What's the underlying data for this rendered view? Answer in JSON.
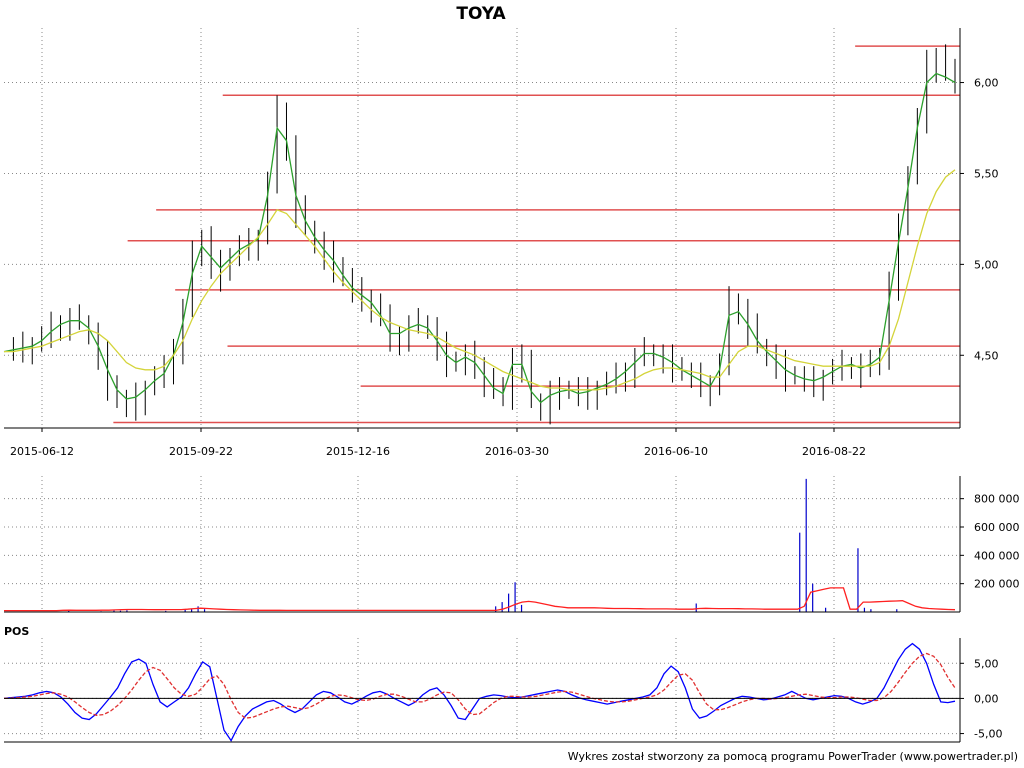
{
  "chart_data": [
    {
      "type": "candlestick",
      "title": "TOYA",
      "x_ticks": [
        "2015-06-12",
        "2015-09-22",
        "2015-12-16",
        "2016-03-30",
        "2016-06-10",
        "2016-08-22"
      ],
      "y_ticks": [
        "4,50",
        "5,00",
        "5,50",
        "6,00"
      ],
      "ylim": [
        4.1,
        6.3
      ],
      "grid": true,
      "series": [
        {
          "name": "",
          "kind": "close-line",
          "color": "#000000",
          "values": [
            4.53,
            4.54,
            4.55,
            4.56,
            4.6,
            4.66,
            4.68,
            4.7,
            4.68,
            4.62,
            4.5,
            4.35,
            4.25,
            4.22,
            4.27,
            4.32,
            4.38,
            4.42,
            4.55,
            4.75,
            5.05,
            5.15,
            5.0,
            4.95,
            5.05,
            5.1,
            5.12,
            5.15,
            5.45,
            5.85,
            5.65,
            5.3,
            5.2,
            5.12,
            5.05,
            5.0,
            4.92,
            4.85,
            4.82,
            4.78,
            4.7,
            4.58,
            4.62,
            4.66,
            4.68,
            4.65,
            4.55,
            4.48,
            4.45,
            4.5,
            4.45,
            4.37,
            4.3,
            4.28,
            4.5,
            4.45,
            4.25,
            4.2,
            4.3,
            4.3,
            4.32,
            4.28,
            4.3,
            4.32,
            4.35,
            4.38,
            4.42,
            4.48,
            4.52,
            4.5,
            4.48,
            4.45,
            4.4,
            4.38,
            4.35,
            4.32,
            4.45,
            4.8,
            4.75,
            4.65,
            4.55,
            4.5,
            4.45,
            4.4,
            4.38,
            4.36,
            4.35,
            4.38,
            4.42,
            4.45,
            4.45,
            4.42,
            4.45,
            4.5,
            4.9,
            5.2,
            5.5,
            5.8,
            6.1,
            6.15,
            6.05,
            6.0
          ]
        },
        {
          "name": "",
          "kind": "moving-average",
          "color": "#2ca02c",
          "values": [
            4.52,
            4.53,
            4.54,
            4.55,
            4.58,
            4.63,
            4.67,
            4.69,
            4.69,
            4.65,
            4.55,
            4.42,
            4.31,
            4.26,
            4.27,
            4.31,
            4.36,
            4.4,
            4.5,
            4.68,
            4.95,
            5.1,
            5.04,
            4.98,
            5.03,
            5.08,
            5.11,
            5.14,
            5.38,
            5.75,
            5.68,
            5.38,
            5.24,
            5.15,
            5.08,
            5.02,
            4.94,
            4.87,
            4.83,
            4.79,
            4.72,
            4.62,
            4.62,
            4.65,
            4.67,
            4.65,
            4.58,
            4.5,
            4.46,
            4.49,
            4.46,
            4.39,
            4.32,
            4.29,
            4.45,
            4.45,
            4.3,
            4.24,
            4.28,
            4.3,
            4.31,
            4.29,
            4.3,
            4.32,
            4.34,
            4.37,
            4.41,
            4.46,
            4.51,
            4.51,
            4.49,
            4.46,
            4.42,
            4.39,
            4.36,
            4.33,
            4.42,
            4.72,
            4.74,
            4.67,
            4.58,
            4.52,
            4.47,
            4.42,
            4.39,
            4.37,
            4.36,
            4.38,
            4.41,
            4.44,
            4.45,
            4.43,
            4.45,
            4.49,
            4.8,
            5.12,
            5.42,
            5.75,
            6.0,
            6.05,
            6.03,
            6.0
          ]
        },
        {
          "name": "",
          "kind": "moving-average",
          "color": "#d4d43a",
          "values": [
            4.52,
            4.52,
            4.53,
            4.54,
            4.55,
            4.57,
            4.59,
            4.61,
            4.63,
            4.64,
            4.62,
            4.58,
            4.52,
            4.46,
            4.43,
            4.42,
            4.42,
            4.44,
            4.5,
            4.58,
            4.7,
            4.8,
            4.88,
            4.95,
            5.0,
            5.05,
            5.1,
            5.15,
            5.22,
            5.3,
            5.28,
            5.22,
            5.16,
            5.1,
            5.03,
            4.96,
            4.9,
            4.85,
            4.8,
            4.75,
            4.71,
            4.68,
            4.66,
            4.64,
            4.63,
            4.62,
            4.6,
            4.57,
            4.54,
            4.52,
            4.5,
            4.47,
            4.44,
            4.41,
            4.39,
            4.37,
            4.35,
            4.33,
            4.32,
            4.32,
            4.31,
            4.31,
            4.31,
            4.31,
            4.32,
            4.33,
            4.35,
            4.37,
            4.4,
            4.42,
            4.43,
            4.43,
            4.42,
            4.41,
            4.4,
            4.38,
            4.38,
            4.45,
            4.52,
            4.55,
            4.55,
            4.53,
            4.51,
            4.49,
            4.47,
            4.46,
            4.45,
            4.44,
            4.44,
            4.44,
            4.44,
            4.44,
            4.44,
            4.46,
            4.55,
            4.7,
            4.9,
            5.1,
            5.28,
            5.4,
            5.48,
            5.52
          ]
        }
      ],
      "horizontal_lines": [
        {
          "value": 6.2,
          "from": 0.895,
          "color": "#e05050"
        },
        {
          "value": 5.93,
          "from": 0.23,
          "color": "#e05050"
        },
        {
          "value": 5.3,
          "from": 0.16,
          "color": "#e05050"
        },
        {
          "value": 5.13,
          "from": 0.13,
          "color": "#e05050"
        },
        {
          "value": 4.86,
          "from": 0.18,
          "color": "#e05050"
        },
        {
          "value": 4.55,
          "from": 0.235,
          "color": "#e05050"
        },
        {
          "value": 4.33,
          "from": 0.375,
          "color": "#e05050"
        },
        {
          "value": 4.13,
          "from": 0.115,
          "color": "#e05050"
        }
      ]
    },
    {
      "type": "bar",
      "y_ticks": [
        "200 000",
        "400 000",
        "600 000",
        "800 000"
      ],
      "ylim": [
        0,
        960000
      ],
      "grid": true,
      "series": [
        {
          "name": "",
          "kind": "volume-bars",
          "color": "#0000cc",
          "values": [
            0,
            0,
            0,
            0,
            0,
            0,
            0,
            0,
            0,
            0,
            8000,
            0,
            0,
            0,
            0,
            5000,
            0,
            10000,
            9000,
            12000,
            0,
            0,
            0,
            0,
            0,
            8000,
            0,
            0,
            15000,
            25000,
            40000,
            20000,
            0,
            0,
            0,
            0,
            0,
            0,
            0,
            0,
            0,
            0,
            0,
            0,
            0,
            0,
            0,
            0,
            0,
            0,
            0,
            0,
            0,
            0,
            0,
            0,
            0,
            0,
            0,
            0,
            0,
            0,
            0,
            0,
            0,
            0,
            0,
            0,
            0,
            0,
            0,
            0,
            0,
            0,
            0,
            0,
            40000,
            70000,
            130000,
            210000,
            50000,
            0,
            0,
            0,
            0,
            0,
            0,
            0,
            0,
            0,
            0,
            0,
            0,
            0,
            0,
            0,
            0,
            0,
            0,
            0,
            0,
            0,
            0,
            0,
            0,
            0,
            0,
            60000,
            0,
            0,
            0,
            0,
            0,
            0,
            0,
            0,
            0,
            0,
            0,
            0,
            0,
            0,
            0,
            560000,
            940000,
            200000,
            0,
            30000,
            0,
            0,
            0,
            0,
            450000,
            30000,
            20000,
            0,
            0,
            0,
            20000,
            0,
            0,
            0,
            0,
            0,
            0,
            0,
            0,
            0
          ]
        },
        {
          "name": "",
          "kind": "volume-average",
          "color": "#ff2020",
          "values": [
            10000,
            10000,
            10000,
            10000,
            10000,
            10000,
            10000,
            10000,
            10000,
            12000,
            13000,
            12000,
            12000,
            12000,
            12000,
            13000,
            13000,
            15000,
            16000,
            18000,
            18000,
            18000,
            17000,
            16000,
            16000,
            17000,
            17000,
            17000,
            20000,
            24000,
            27000,
            25000,
            22000,
            20000,
            18000,
            16000,
            15000,
            14000,
            13000,
            12000,
            12000,
            12000,
            12000,
            11000,
            11000,
            11000,
            11000,
            11000,
            11000,
            11000,
            11000,
            11000,
            11000,
            11000,
            11000,
            11000,
            11000,
            11000,
            11000,
            11000,
            11000,
            11000,
            11000,
            11000,
            11000,
            11000,
            11000,
            11000,
            11000,
            11000,
            11000,
            11000,
            11000,
            11000,
            11000,
            11000,
            20000,
            35000,
            55000,
            70000,
            75000,
            70000,
            60000,
            50000,
            40000,
            35000,
            30000,
            30000,
            30000,
            30000,
            30000,
            28000,
            26000,
            25000,
            25000,
            25000,
            24000,
            23000,
            22000,
            22000,
            22000,
            22000,
            21000,
            20000,
            20000,
            20000,
            25000,
            26000,
            25000,
            24000,
            24000,
            24000,
            23000,
            22000,
            22000,
            21000,
            20000,
            20000,
            20000,
            20000,
            20000,
            20000,
            40000,
            140000,
            150000,
            160000,
            170000,
            170000,
            170000,
            20000,
            20000,
            70000,
            70000,
            72000,
            74000,
            76000,
            78000,
            80000,
            60000,
            40000,
            30000,
            25000,
            22000,
            20000,
            18000,
            16000
          ]
        }
      ]
    },
    {
      "type": "line",
      "label": "POS",
      "y_ticks": [
        "-5,00",
        "0,00",
        "5,00"
      ],
      "ylim": [
        -6.2,
        8.6
      ],
      "grid": true,
      "series": [
        {
          "name": "",
          "kind": "oscillator",
          "color": "#0000ff",
          "values": [
            0,
            0.1,
            0.2,
            0.3,
            0.5,
            0.8,
            1.0,
            0.8,
            0.2,
            -0.8,
            -2.0,
            -2.8,
            -3.0,
            -2.2,
            -1.0,
            0.2,
            1.5,
            3.5,
            5.2,
            5.6,
            5.0,
            2.0,
            -0.5,
            -1.2,
            -0.5,
            0.2,
            1.5,
            3.5,
            5.2,
            4.5,
            0,
            -4.5,
            -6.0,
            -4.0,
            -2.5,
            -1.5,
            -1.0,
            -0.5,
            -0.3,
            -0.8,
            -1.5,
            -2.0,
            -1.5,
            -0.5,
            0.5,
            1.0,
            0.8,
            0.2,
            -0.5,
            -0.8,
            -0.3,
            0.3,
            0.8,
            1.0,
            0.6,
            0,
            -0.5,
            -1.0,
            -0.5,
            0.5,
            1.2,
            1.5,
            0.5,
            -1.0,
            -2.8,
            -3.0,
            -1.5,
            0,
            0.3,
            0.5,
            0.4,
            0.2,
            0.1,
            0.2,
            0.4,
            0.6,
            0.8,
            1.0,
            1.2,
            1.0,
            0.5,
            0.1,
            -0.2,
            -0.4,
            -0.6,
            -0.8,
            -0.6,
            -0.4,
            -0.2,
            0,
            0.2,
            0.5,
            1.5,
            3.5,
            4.6,
            3.8,
            1.5,
            -1.5,
            -2.8,
            -2.5,
            -1.8,
            -1.0,
            -0.5,
            0,
            0.3,
            0.2,
            0,
            -0.2,
            -0.1,
            0.2,
            0.5,
            1.0,
            0.5,
            0,
            -0.2,
            0,
            0.2,
            0.4,
            0.3,
            0,
            -0.5,
            -0.8,
            -0.5,
            0,
            1.5,
            3.5,
            5.5,
            7.0,
            7.8,
            7.0,
            5.0,
            2.0,
            -0.5,
            -0.6,
            -0.4
          ]
        },
        {
          "name": "",
          "kind": "signal",
          "color": "#e03030",
          "dashed": true,
          "values": [
            0,
            0.05,
            0.1,
            0.2,
            0.3,
            0.5,
            0.7,
            0.8,
            0.6,
            0.2,
            -0.5,
            -1.3,
            -2.0,
            -2.4,
            -2.3,
            -1.8,
            -1.0,
            0,
            1.2,
            2.6,
            3.8,
            4.4,
            4.0,
            2.8,
            1.5,
            0.6,
            0.3,
            0.6,
            1.6,
            2.8,
            3.2,
            2.0,
            -0.2,
            -2.0,
            -2.8,
            -2.7,
            -2.3,
            -1.9,
            -1.5,
            -1.2,
            -1.1,
            -1.3,
            -1.5,
            -1.3,
            -0.8,
            -0.2,
            0.3,
            0.5,
            0.4,
            0.1,
            -0.2,
            -0.3,
            -0.1,
            0.3,
            0.6,
            0.6,
            0.3,
            -0.1,
            -0.5,
            -0.5,
            -0.1,
            0.5,
            0.9,
            0.8,
            -0.2,
            -1.5,
            -2.3,
            -2.2,
            -1.4,
            -0.6,
            0,
            0.3,
            0.3,
            0.2,
            0.2,
            0.3,
            0.5,
            0.7,
            0.9,
            1.0,
            0.9,
            0.6,
            0.3,
            0,
            -0.2,
            -0.4,
            -0.5,
            -0.5,
            -0.4,
            -0.2,
            0,
            0.2,
            0.5,
            1.2,
            2.3,
            3.3,
            3.5,
            2.6,
            0.8,
            -0.8,
            -1.6,
            -1.6,
            -1.3,
            -0.9,
            -0.5,
            -0.2,
            0,
            0,
            -0.1,
            0,
            0.1,
            0.3,
            0.5,
            0.6,
            0.4,
            0.2,
            0.1,
            0.1,
            0.2,
            0.2,
            0.1,
            -0.1,
            -0.3,
            -0.3,
            0.1,
            1.0,
            2.3,
            3.7,
            5.0,
            6.0,
            6.4,
            6.0,
            4.8,
            3.0,
            1.5
          ]
        }
      ]
    }
  ],
  "footer": "Wykres został stworzony za pomocą programu PowerTrader (www.powertrader.pl)"
}
